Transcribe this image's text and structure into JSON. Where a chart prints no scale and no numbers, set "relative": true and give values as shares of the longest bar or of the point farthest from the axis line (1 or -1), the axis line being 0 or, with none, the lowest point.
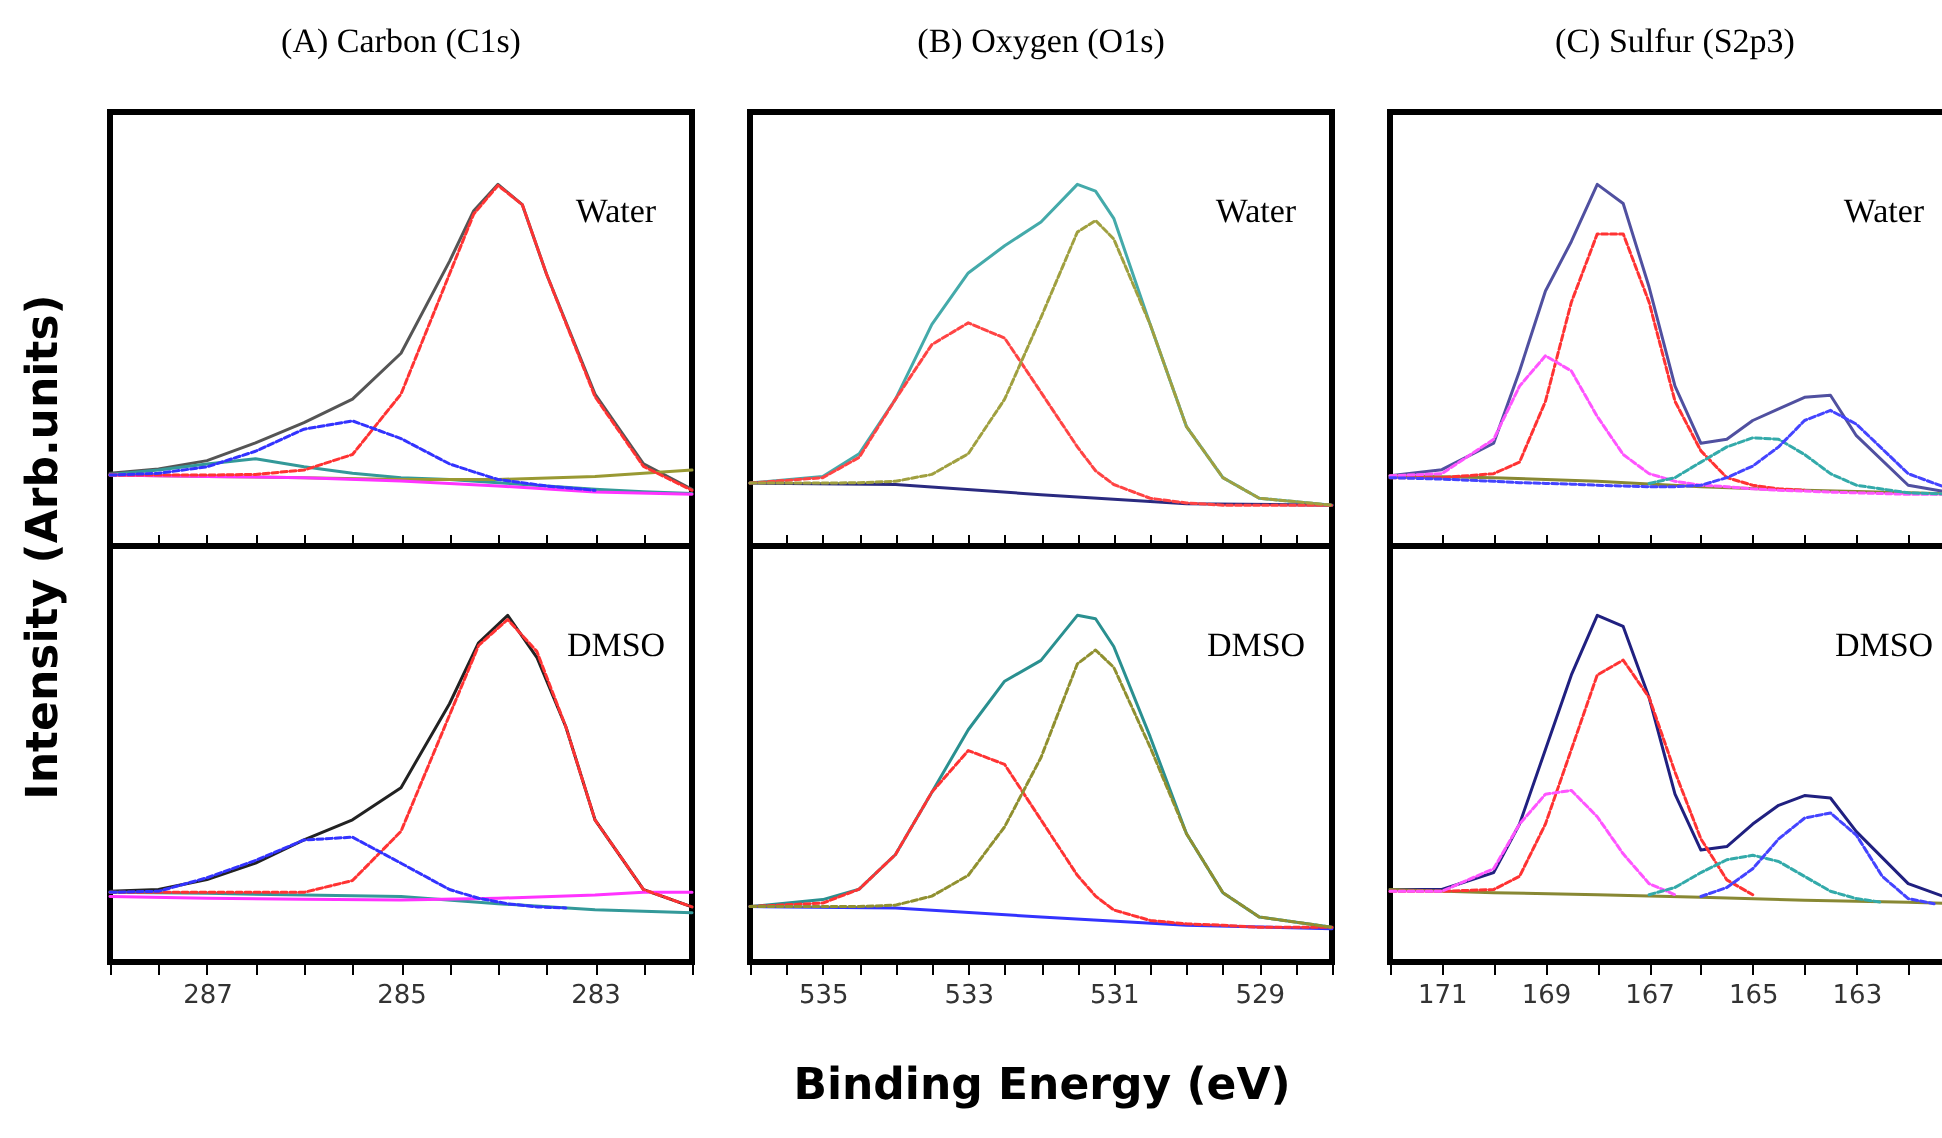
{
  "chart_data": [
    {
      "type": "line",
      "title": "(A)  Carbon (C1s)",
      "ylabel": "Intensity (Arb.units)",
      "relative": true,
      "tick_labels": false,
      "annotations": [
        "Water"
      ],
      "xlim": [
        288,
        282
      ],
      "xticks": [
        {
          "value": 288,
          "label": null
        },
        {
          "value": 287.5,
          "label": null
        },
        287,
        {
          "value": 286.5,
          "label": null
        },
        {
          "value": 286,
          "label": null
        },
        {
          "value": 285.5,
          "label": null
        },
        285,
        {
          "value": 284.5,
          "label": null
        },
        {
          "value": 284,
          "label": null
        },
        {
          "value": 283.5,
          "label": null
        },
        283,
        {
          "value": 282.5,
          "label": null
        },
        {
          "value": 282,
          "label": null
        }
      ],
      "x": [
        288,
        287.5,
        287,
        286.5,
        286,
        285.5,
        285,
        284.5,
        284.25,
        284,
        283.75,
        283.5,
        283,
        282.5,
        282
      ],
      "series": [
        {
          "color": "#555555",
          "line_style": "solid",
          "values": [
            0.201,
            0.213,
            0.236,
            0.285,
            0.341,
            0.406,
            0.533,
            0.787,
            0.927,
            1.0,
            0.944,
            0.752,
            0.42,
            0.227,
            0.157
          ]
        },
        {
          "color": "#ff3333",
          "line_style": "dotted",
          "values": [
            0.196,
            0.196,
            0.196,
            0.198,
            0.21,
            0.253,
            0.42,
            0.752,
            0.918,
            0.997,
            0.944,
            0.752,
            0.413,
            0.22,
            0.154
          ]
        },
        {
          "color": "#3333ff",
          "line_style": "dotted",
          "values": [
            0.196,
            0.201,
            0.219,
            0.262,
            0.323,
            0.346,
            0.297,
            0.227,
            0.205,
            0.184,
            0.175,
            0.166,
            0.154,
            null,
            null
          ]
        },
        {
          "color": "#339999",
          "line_style": "solid",
          "x": [
            288,
            287.5,
            287,
            286.5,
            286,
            285.5,
            285,
            284.5,
            284,
            283.5,
            283,
            282.5,
            282
          ],
          "values": [
            0.198,
            0.21,
            0.227,
            0.241,
            0.219,
            0.201,
            0.189,
            0.184,
            0.175,
            0.166,
            0.157,
            0.15,
            0.145
          ]
        },
        {
          "color": "#999933",
          "line_style": "solid",
          "x": [
            288,
            287,
            286,
            285,
            284,
            283,
            282.5,
            282
          ],
          "values": [
            0.196,
            0.192,
            0.189,
            0.184,
            0.184,
            0.192,
            0.201,
            0.21
          ]
        },
        {
          "color": "#ff33ff",
          "line_style": "solid",
          "x": [
            288,
            287,
            286,
            285,
            284,
            283,
            282
          ],
          "values": [
            0.196,
            0.192,
            0.189,
            0.18,
            0.166,
            0.149,
            0.143
          ]
        }
      ]
    },
    {
      "type": "line",
      "title": "(B)  Oxygen (O1s)",
      "relative": true,
      "tick_labels": false,
      "annotations": [
        "Water"
      ],
      "xlim": [
        536,
        528
      ],
      "xticks": [
        {
          "value": 536,
          "label": null
        },
        {
          "value": 535.5,
          "label": null
        },
        535,
        {
          "value": 534.5,
          "label": null
        },
        {
          "value": 534,
          "label": null
        },
        {
          "value": 533.5,
          "label": null
        },
        533,
        {
          "value": 532.5,
          "label": null
        },
        {
          "value": 532,
          "label": null
        },
        {
          "value": 531.5,
          "label": null
        },
        531,
        {
          "value": 530.5,
          "label": null
        },
        {
          "value": 530,
          "label": null
        },
        {
          "value": 529.5,
          "label": null
        },
        529,
        {
          "value": 528.5,
          "label": null
        },
        {
          "value": 528,
          "label": null
        }
      ],
      "x": [
        536,
        535,
        534.5,
        534,
        533.5,
        533,
        532.5,
        532,
        531.5,
        531.25,
        531,
        530.5,
        530,
        529.5,
        529,
        528
      ],
      "series": [
        {
          "color": "#44aaaa",
          "line_style": "solid",
          "values": [
            0.174,
            0.192,
            0.255,
            0.406,
            0.613,
            0.755,
            0.83,
            0.896,
            1.0,
            0.981,
            0.906,
            0.613,
            0.33,
            0.189,
            0.132,
            0.113
          ]
        },
        {
          "color": "#ff4444",
          "line_style": "dotted",
          "values": [
            0.174,
            0.189,
            0.245,
            0.406,
            0.557,
            0.617,
            0.575,
            0.425,
            0.274,
            0.208,
            0.17,
            0.132,
            0.119,
            0.113,
            0.113,
            0.113
          ]
        },
        {
          "color": "#a0a040",
          "line_style": "dotted",
          "values": [
            0.174,
            0.174,
            0.175,
            0.179,
            0.198,
            0.255,
            0.406,
            0.632,
            0.868,
            0.9,
            0.849,
            0.613,
            0.33,
            0.189,
            0.132,
            0.113
          ]
        },
        {
          "color": "#2a2a80",
          "line_style": "solid",
          "x": [
            536,
            534,
            532,
            530,
            528
          ],
          "values": [
            0.174,
            0.17,
            0.142,
            0.117,
            0.113
          ]
        }
      ]
    },
    {
      "type": "line",
      "title": "(C)  Sulfur (S2p3)",
      "relative": true,
      "tick_labels": false,
      "annotations": [
        "Water"
      ],
      "xlim": [
        172,
        161
      ],
      "xticks": [
        {
          "value": 172,
          "label": null
        },
        171,
        {
          "value": 170,
          "label": null
        },
        169,
        {
          "value": 168,
          "label": null
        },
        167,
        {
          "value": 166,
          "label": null
        },
        165,
        {
          "value": 164,
          "label": null
        },
        163,
        {
          "value": 162,
          "label": null
        },
        {
          "value": 161,
          "label": null
        }
      ],
      "x": [
        172,
        171,
        170,
        169.5,
        169,
        168.5,
        168,
        167.5,
        167,
        166.5,
        166,
        165.5,
        165,
        164.5,
        164,
        163.5,
        163,
        162,
        161
      ],
      "series": [
        {
          "color": "#5050a0",
          "line_style": "solid",
          "values": [
            0.194,
            0.211,
            0.284,
            0.484,
            0.705,
            0.842,
            1.0,
            0.947,
            0.716,
            0.442,
            0.284,
            0.295,
            0.347,
            0.379,
            0.411,
            0.417,
            0.305,
            0.168,
            0.143
          ]
        },
        {
          "color": "#ff3333",
          "line_style": "dotted",
          "values": [
            0.189,
            0.189,
            0.2,
            0.232,
            0.4,
            0.674,
            0.863,
            0.863,
            0.674,
            0.4,
            0.263,
            0.189,
            0.168,
            0.158,
            0.154,
            null,
            null,
            null,
            null
          ]
        },
        {
          "color": "#ff55ff",
          "line_style": "dotted",
          "values": [
            0.194,
            0.2,
            0.295,
            0.442,
            0.526,
            0.484,
            0.358,
            0.253,
            0.2,
            0.179,
            0.168,
            0.164,
            0.158,
            0.154,
            0.152,
            0.149,
            0.147,
            0.143,
            0.143
          ]
        },
        {
          "color": "#33aaaa",
          "line_style": "dotted",
          "values": [
            null,
            null,
            null,
            null,
            null,
            null,
            null,
            null,
            0.173,
            0.189,
            0.232,
            0.274,
            0.299,
            0.295,
            0.253,
            0.2,
            0.168,
            0.147,
            0.143
          ]
        },
        {
          "color": "#4444ff",
          "line_style": "dotted",
          "values": [
            0.189,
            0.185,
            0.179,
            0.175,
            0.173,
            0.171,
            0.168,
            0.166,
            0.164,
            0.164,
            0.168,
            0.189,
            0.221,
            0.274,
            0.347,
            0.375,
            0.337,
            0.2,
            0.147
          ]
        },
        {
          "color": "#888833",
          "line_style": "solid",
          "x": [
            172,
            170,
            168,
            166,
            164,
            162,
            161
          ],
          "values": [
            0.194,
            0.189,
            0.179,
            0.164,
            0.154,
            0.147,
            0.143
          ]
        }
      ]
    },
    {
      "type": "line",
      "relative": true,
      "tick_labels": "x",
      "annotations": [
        "DMSO"
      ],
      "xlim": [
        288,
        282
      ],
      "xticks": [
        {
          "value": 288,
          "label": null
        },
        {
          "value": 287.5,
          "label": null
        },
        287,
        {
          "value": 286.5,
          "label": null
        },
        {
          "value": 286,
          "label": null
        },
        {
          "value": 285.5,
          "label": null
        },
        285,
        {
          "value": 284.5,
          "label": null
        },
        {
          "value": 284,
          "label": null
        },
        {
          "value": 283.5,
          "label": null
        },
        283,
        {
          "value": 282.5,
          "label": null
        },
        {
          "value": 282,
          "label": null
        }
      ],
      "x": [
        288,
        287.5,
        287,
        286.5,
        286,
        285.5,
        285,
        284.5,
        284.2,
        283.9,
        283.6,
        283.3,
        283,
        282.5,
        282
      ],
      "series": [
        {
          "color": "#222222",
          "line_style": "solid",
          "values": [
            0.204,
            0.209,
            0.238,
            0.285,
            0.352,
            0.41,
            0.503,
            0.745,
            0.921,
            1.0,
            0.879,
            0.678,
            0.41,
            0.209,
            0.159
          ]
        },
        {
          "color": "#ff3333",
          "line_style": "dotted",
          "values": [
            0.201,
            0.201,
            0.201,
            0.201,
            0.201,
            0.235,
            0.377,
            0.712,
            0.913,
            0.988,
            0.896,
            0.678,
            0.41,
            0.209,
            0.159
          ]
        },
        {
          "color": "#3333ff",
          "line_style": "dotted",
          "values": [
            0.201,
            0.204,
            0.243,
            0.293,
            0.352,
            0.36,
            0.285,
            0.209,
            0.184,
            0.168,
            0.159,
            0.156,
            null,
            null,
            null
          ]
        },
        {
          "color": "#339999",
          "line_style": "solid",
          "x": [
            288,
            287,
            286,
            285,
            284,
            283,
            282
          ],
          "values": [
            0.201,
            0.198,
            0.193,
            0.189,
            0.168,
            0.151,
            0.142
          ]
        },
        {
          "color": "#ff33ff",
          "line_style": "solid",
          "x": [
            288,
            287,
            286,
            285,
            284,
            283,
            282.5,
            282
          ],
          "values": [
            0.189,
            0.184,
            0.181,
            0.179,
            0.184,
            0.193,
            0.201,
            0.201
          ]
        }
      ]
    },
    {
      "type": "line",
      "xlabel": "Binding Energy (eV)",
      "relative": true,
      "tick_labels": "x",
      "annotations": [
        "DMSO"
      ],
      "xlim": [
        536,
        528
      ],
      "xticks": [
        {
          "value": 536,
          "label": null
        },
        {
          "value": 535.5,
          "label": null
        },
        535,
        {
          "value": 534.5,
          "label": null
        },
        {
          "value": 534,
          "label": null
        },
        {
          "value": 533.5,
          "label": null
        },
        533,
        {
          "value": 532.5,
          "label": null
        },
        {
          "value": 532,
          "label": null
        },
        {
          "value": 531.5,
          "label": null
        },
        531,
        {
          "value": 530.5,
          "label": null
        },
        {
          "value": 530,
          "label": null
        },
        {
          "value": 529.5,
          "label": null
        },
        529,
        {
          "value": 528.5,
          "label": null
        },
        {
          "value": 528,
          "label": null
        }
      ],
      "x": [
        536,
        535,
        534.5,
        534,
        533.5,
        533,
        532.5,
        532,
        531.5,
        531.25,
        531,
        530.5,
        530,
        529.5,
        529,
        528
      ],
      "series": [
        {
          "color": "#2a9090",
          "line_style": "solid",
          "values": [
            0.16,
            0.18,
            0.21,
            0.31,
            0.49,
            0.67,
            0.81,
            0.87,
            1.0,
            0.99,
            0.91,
            0.65,
            0.37,
            0.2,
            0.13,
            0.1
          ]
        },
        {
          "color": "#ff3333",
          "line_style": "dotted",
          "values": [
            0.16,
            0.17,
            0.21,
            0.31,
            0.49,
            0.61,
            0.57,
            0.41,
            0.25,
            0.19,
            0.15,
            0.12,
            0.11,
            0.106,
            0.1,
            0.1
          ]
        },
        {
          "color": "#909030",
          "line_style": "dotted",
          "values": [
            0.16,
            0.16,
            0.16,
            0.164,
            0.19,
            0.25,
            0.39,
            0.59,
            0.86,
            0.9,
            0.85,
            0.62,
            0.37,
            0.2,
            0.13,
            0.1
          ]
        },
        {
          "color": "#3333ff",
          "line_style": "solid",
          "x": [
            536,
            534,
            532,
            530,
            528
          ],
          "values": [
            0.16,
            0.156,
            0.13,
            0.106,
            0.096
          ]
        }
      ]
    },
    {
      "type": "line",
      "relative": true,
      "tick_labels": "x",
      "annotations": [
        "DMSO"
      ],
      "xlim": [
        172,
        161
      ],
      "xticks": [
        {
          "value": 172,
          "label": null
        },
        171,
        {
          "value": 170,
          "label": null
        },
        169,
        {
          "value": 168,
          "label": null
        },
        167,
        {
          "value": 166,
          "label": null
        },
        165,
        {
          "value": 164,
          "label": null
        },
        163,
        {
          "value": 162,
          "label": null
        },
        {
          "value": 161,
          "label": null
        }
      ],
      "x": [
        172,
        171,
        170,
        169.5,
        169,
        168.5,
        168,
        167.5,
        167,
        166.5,
        166,
        165.5,
        165,
        164.5,
        164,
        163.5,
        163,
        162,
        161
      ],
      "series": [
        {
          "color": "#202080",
          "line_style": "solid",
          "values": [
            0.209,
            0.209,
            0.258,
            0.398,
            0.613,
            0.828,
            1.0,
            0.968,
            0.763,
            0.484,
            0.323,
            0.333,
            0.398,
            0.452,
            0.48,
            0.473,
            0.376,
            0.226,
            0.172
          ]
        },
        {
          "color": "#ff3333",
          "line_style": "dotted",
          "values": [
            0.204,
            0.204,
            0.209,
            0.247,
            0.398,
            0.613,
            0.828,
            0.871,
            0.763,
            0.548,
            0.355,
            0.237,
            0.194,
            null,
            null,
            null,
            null,
            null,
            null
          ]
        },
        {
          "color": "#ff55ff",
          "line_style": "dotted",
          "values": [
            0.204,
            0.204,
            0.269,
            0.398,
            0.484,
            0.495,
            0.419,
            0.312,
            0.226,
            0.194,
            null,
            null,
            null,
            null,
            null,
            null,
            null,
            null,
            null
          ]
        },
        {
          "color": "#33aaaa",
          "line_style": "dotted",
          "x": [
            167,
            166.5,
            166,
            165.5,
            165,
            164.5,
            164,
            163.5,
            163,
            162.5
          ],
          "values": [
            0.194,
            0.215,
            0.258,
            0.295,
            0.308,
            0.29,
            0.247,
            0.204,
            0.183,
            0.172
          ]
        },
        {
          "color": "#4444ff",
          "line_style": "dotted",
          "x": [
            166,
            165.5,
            165,
            164.5,
            164,
            163.5,
            163,
            162.5,
            162,
            161.5
          ],
          "values": [
            0.189,
            0.215,
            0.269,
            0.355,
            0.415,
            0.43,
            0.366,
            0.247,
            0.183,
            0.168
          ]
        },
        {
          "color": "#888833",
          "line_style": "solid",
          "x": [
            172,
            170,
            168,
            166,
            164,
            162,
            161
          ],
          "values": [
            0.209,
            0.2,
            0.194,
            0.187,
            0.178,
            0.172,
            0.168
          ]
        }
      ]
    }
  ]
}
